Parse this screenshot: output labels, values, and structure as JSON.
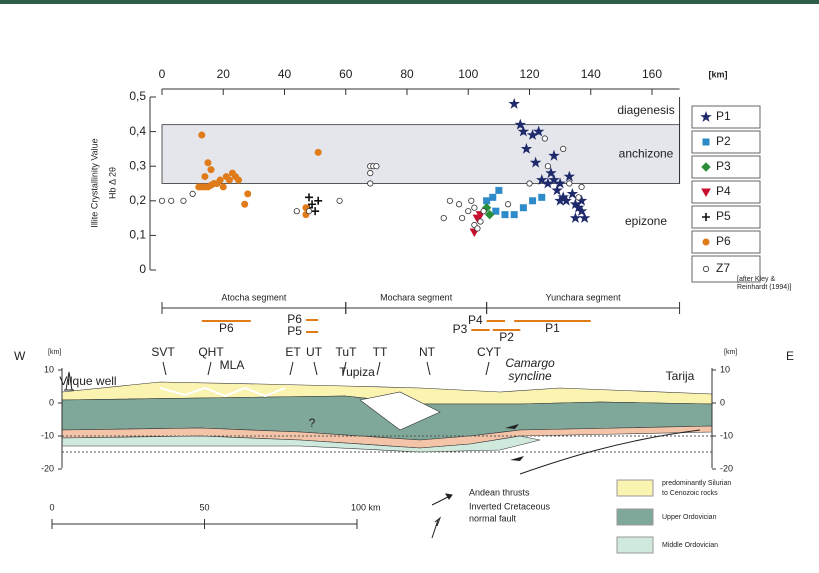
{
  "chart_data": {
    "type": "scatter",
    "y_label": "Illite Crystallinity Value",
    "y_sublabel": "Hb Δ 2θ",
    "x_unit": "[km]",
    "xlim": [
      0,
      170
    ],
    "xticks": [
      0,
      20,
      40,
      60,
      80,
      100,
      120,
      140,
      160
    ],
    "ylim": [
      0,
      0.5
    ],
    "yticks": [
      0,
      {
        "value": 0.1,
        "label": "0,1"
      },
      {
        "value": 0.2,
        "label": "0,2"
      },
      {
        "value": 0.3,
        "label": "0,3"
      },
      {
        "value": 0.4,
        "label": "0,4"
      },
      {
        "value": 0.5,
        "label": "0,5"
      }
    ],
    "zones": [
      {
        "label": "diagenesis",
        "range": [
          0.42,
          0.5
        ]
      },
      {
        "label": "anchizone",
        "range": [
          0.25,
          0.42
        ]
      },
      {
        "label": "epizone",
        "range": [
          0,
          0.25
        ]
      }
    ],
    "series": [
      {
        "name": "P1",
        "color": "#1f2a6b",
        "x": [
          115,
          117,
          118,
          119,
          121,
          123,
          122,
          124,
          126,
          127,
          128,
          129,
          130,
          131,
          132,
          133,
          134,
          135,
          136,
          137,
          138,
          135,
          137,
          130,
          128
        ],
        "values": [
          0.48,
          0.42,
          0.4,
          0.35,
          0.39,
          0.4,
          0.31,
          0.26,
          0.25,
          0.28,
          0.26,
          0.23,
          0.2,
          0.21,
          0.2,
          0.27,
          0.22,
          0.19,
          0.18,
          0.17,
          0.15,
          0.15,
          0.2,
          0.25,
          0.33
        ]
      },
      {
        "name": "P2",
        "color": "#2e8bc9",
        "x": [
          106,
          108,
          110,
          112,
          115,
          118,
          121,
          124,
          109
        ],
        "values": [
          0.2,
          0.21,
          0.23,
          0.16,
          0.16,
          0.18,
          0.2,
          0.21,
          0.17
        ]
      },
      {
        "name": "P3",
        "color": "#2a8f3a",
        "x": [
          106,
          107
        ],
        "values": [
          0.18,
          0.16
        ]
      },
      {
        "name": "P4",
        "color": "#c8102e",
        "x": [
          102,
          103,
          104
        ],
        "values": [
          0.11,
          0.15,
          0.16
        ]
      },
      {
        "name": "P5",
        "color": "#111111",
        "x": [
          48,
          49,
          50,
          51,
          48
        ],
        "values": [
          0.18,
          0.19,
          0.17,
          0.2,
          0.21
        ]
      },
      {
        "name": "P6",
        "color": "#e07b1a",
        "x": [
          13,
          15,
          16,
          14,
          12,
          13,
          14,
          15,
          16,
          17,
          18,
          19,
          20,
          21,
          22,
          23,
          24,
          25,
          28,
          27,
          47,
          47,
          51
        ],
        "values": [
          0.39,
          0.31,
          0.29,
          0.27,
          0.24,
          0.24,
          0.24,
          0.24,
          0.245,
          0.25,
          0.25,
          0.26,
          0.24,
          0.27,
          0.26,
          0.28,
          0.27,
          0.26,
          0.22,
          0.19,
          0.16,
          0.18,
          0.34
        ]
      },
      {
        "name": "Z7",
        "color": "#ffffff",
        "x": [
          0,
          3,
          7,
          10,
          44,
          48,
          58,
          68,
          68,
          68,
          69,
          70,
          92,
          94,
          97,
          98,
          100,
          101,
          102,
          102,
          103,
          104,
          105,
          113,
          126,
          131,
          133,
          137,
          136,
          125,
          120
        ],
        "values": [
          0.2,
          0.2,
          0.2,
          0.22,
          0.17,
          0.17,
          0.2,
          0.25,
          0.28,
          0.3,
          0.3,
          0.3,
          0.15,
          0.2,
          0.19,
          0.15,
          0.17,
          0.2,
          0.18,
          0.13,
          0.12,
          0.14,
          0.17,
          0.19,
          0.3,
          0.35,
          0.25,
          0.24,
          0.21,
          0.38,
          0.25
        ]
      }
    ],
    "legend_note": [
      "[after Kley &",
      "Reinhardt (1994)]"
    ],
    "segments": [
      {
        "label": "Atocha segment",
        "range": [
          0,
          60
        ]
      },
      {
        "label": "Mochara segment",
        "range": [
          60,
          106
        ]
      },
      {
        "label": "Yunchara segment",
        "range": [
          106,
          169
        ]
      }
    ],
    "profiles": [
      {
        "name": "P6",
        "range": [
          13,
          29
        ]
      },
      {
        "name": "P6",
        "range": [
          47,
          51
        ]
      },
      {
        "name": "P5",
        "range": [
          47,
          51
        ]
      },
      {
        "name": "P4",
        "range": [
          106,
          112
        ]
      },
      {
        "name": "P3",
        "range": [
          101,
          107
        ]
      },
      {
        "name": "P2",
        "range": [
          108,
          117
        ]
      },
      {
        "name": "P1",
        "range": [
          115,
          140
        ]
      }
    ],
    "cross_section": {
      "west": "W",
      "east": "E",
      "depth_unit": "[km]",
      "depth_ticks": [
        10,
        0,
        -10,
        -20
      ],
      "labels": [
        "Vilque well",
        "SVT",
        "QHT",
        "MLA",
        "ET",
        "UT",
        "TuT",
        "Tupiza",
        "TT",
        "NT",
        "CYT",
        "Camargo",
        "syncline",
        "Tarija",
        "?"
      ],
      "scale_ticks": [
        0,
        50,
        {
          "value": 100,
          "label": "100 km"
        }
      ],
      "legend": [
        "Andean thrusts",
        "Inverted Cretaceous",
        "normal fault",
        "predominantly Silurian",
        "to Cenozoic rocks",
        "Upper Ordovician",
        "Middle Ordovician"
      ]
    }
  }
}
